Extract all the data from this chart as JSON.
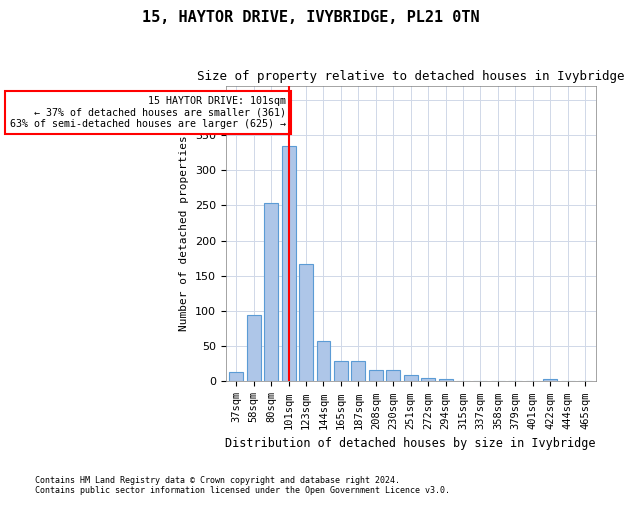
{
  "title": "15, HAYTOR DRIVE, IVYBRIDGE, PL21 0TN",
  "subtitle": "Size of property relative to detached houses in Ivybridge",
  "xlabel": "Distribution of detached houses by size in Ivybridge",
  "ylabel": "Number of detached properties",
  "footer_line1": "Contains HM Land Registry data © Crown copyright and database right 2024.",
  "footer_line2": "Contains public sector information licensed under the Open Government Licence v3.0.",
  "bins": [
    "37sqm",
    "58sqm",
    "80sqm",
    "101sqm",
    "123sqm",
    "144sqm",
    "165sqm",
    "187sqm",
    "208sqm",
    "230sqm",
    "251sqm",
    "272sqm",
    "294sqm",
    "315sqm",
    "337sqm",
    "358sqm",
    "379sqm",
    "401sqm",
    "422sqm",
    "444sqm",
    "465sqm"
  ],
  "values": [
    14,
    95,
    254,
    334,
    166,
    57,
    29,
    29,
    16,
    16,
    9,
    5,
    4,
    1,
    1,
    1,
    0,
    0,
    3,
    0,
    0
  ],
  "bar_color": "#aec6e8",
  "bar_edge_color": "#5b9bd5",
  "red_line_index": 3,
  "annotation_text": "15 HAYTOR DRIVE: 101sqm\n← 37% of detached houses are smaller (361)\n63% of semi-detached houses are larger (625) →",
  "annotation_box_color": "white",
  "annotation_box_edge_color": "red",
  "ylim": [
    0,
    420
  ],
  "yticks": [
    0,
    50,
    100,
    150,
    200,
    250,
    300,
    350,
    400
  ],
  "grid_color": "#d0d8e8",
  "background_color": "white"
}
